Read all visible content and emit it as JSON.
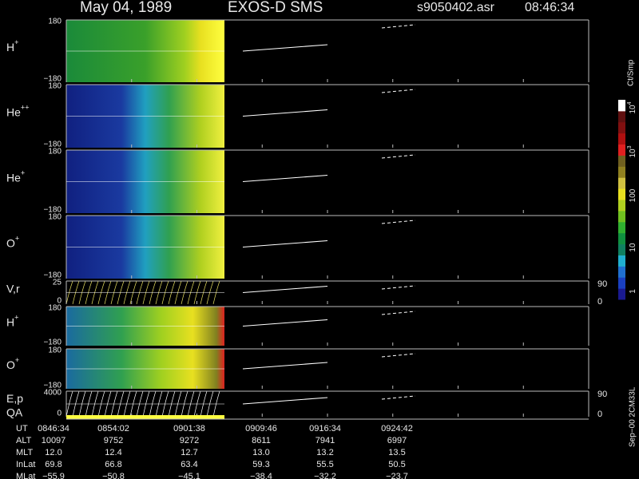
{
  "header": {
    "date": "May 04, 1989",
    "instrument": "EXOS-D SMS",
    "file": "s9050402.asr",
    "time": "08:46:34"
  },
  "panels": [
    {
      "label": "H",
      "sup": "+",
      "top": "180",
      "bottom": "−180"
    },
    {
      "label": "He",
      "sup": "++",
      "top": "180",
      "bottom": "−180"
    },
    {
      "label": "He",
      "sup": "+",
      "top": "180",
      "bottom": "−180"
    },
    {
      "label": "O",
      "sup": "+",
      "top": "180",
      "bottom": "−180"
    },
    {
      "label": "V,r",
      "top": "25",
      "bottom": "0",
      "right_top": "90",
      "right_bottom": "0"
    },
    {
      "label": "H",
      "sup": "+",
      "top": "180",
      "bottom": "−180"
    },
    {
      "label": "O",
      "sup": "+",
      "top": "180",
      "bottom": "−180"
    },
    {
      "label": "E,p",
      "label2": "QA",
      "top": "4000",
      "bottom": "0",
      "right_top": "90",
      "right_bottom": "0"
    }
  ],
  "colorbar": {
    "unit": "Ct/Smp",
    "labels": [
      {
        "text": "1"
      },
      {
        "text": "10"
      },
      {
        "text": "100"
      },
      {
        "text": "10",
        "sup": "3"
      },
      {
        "text": "10",
        "sup": "4"
      }
    ]
  },
  "table": {
    "rows": [
      [
        "UT",
        "0846:34",
        "0854:02",
        "0901:38",
        "0909:46",
        "0916:34",
        "0924:42"
      ],
      [
        "ALT",
        "10097",
        "9752",
        "9272",
        "8611",
        "7941",
        "6997"
      ],
      [
        "MLT",
        "12.0",
        "12.4",
        "12.7",
        "13.0",
        "13.2",
        "13.5"
      ],
      [
        "InLat",
        "69.8",
        "66.8",
        "63.4",
        "59.3",
        "55.5",
        "50.5"
      ],
      [
        "MLat",
        "−55.9",
        "−50.8",
        "−45.1",
        "−38.4",
        "−32.2",
        "−23.7"
      ]
    ]
  },
  "footer": "Sep−00 2CM33L"
}
